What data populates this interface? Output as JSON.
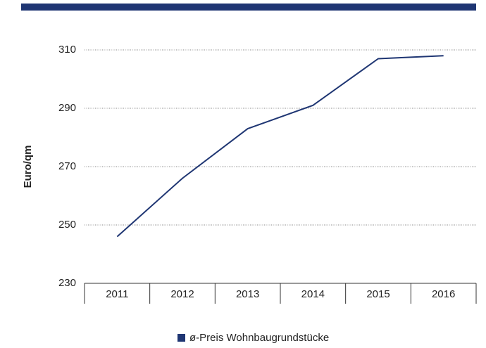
{
  "chart_data": {
    "type": "line",
    "y_label": "Euro/qm",
    "categories": [
      "2011",
      "2012",
      "2013",
      "2014",
      "2015",
      "2016"
    ],
    "series": [
      {
        "name": "ø-Preis Wohnbaugrundstücke",
        "color": "#1f3673",
        "values": [
          246,
          266,
          283,
          291,
          307,
          308
        ]
      }
    ],
    "ylim": [
      230,
      310
    ],
    "yticks": [
      230,
      250,
      270,
      290,
      310
    ],
    "grid": true,
    "legend": "bottom"
  }
}
